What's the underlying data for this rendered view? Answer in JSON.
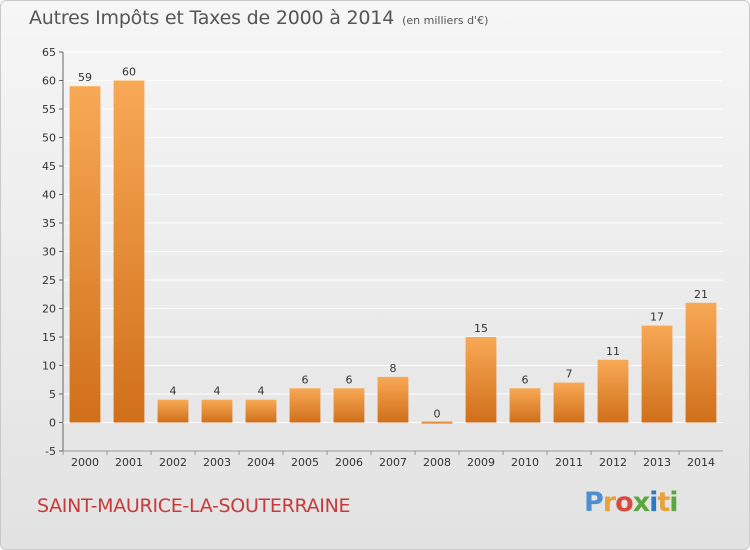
{
  "title": "Autres Impôts et Taxes de 2000 à 2014",
  "unit_note": "(en milliers d'€)",
  "commune": "SAINT-MAURICE-LA-SOUTERRAINE",
  "brand": {
    "letters": [
      "P",
      "r",
      "o",
      "x",
      "i",
      "t",
      "i"
    ],
    "colors": [
      "#4f8fd1",
      "#e8a23a",
      "#d74b3f",
      "#5aa83c",
      "#2f78c4",
      "#e8a23a",
      "#5aa83c"
    ]
  },
  "colors": {
    "bar_light": "#f8a955",
    "bar_dark": "#d06f1a",
    "text": "#555555",
    "commune": "#c83a3a",
    "grid": "#ffffff"
  },
  "chart_data": {
    "type": "bar",
    "title": "Autres Impôts et Taxes de 2000 à 2014",
    "categories": [
      "2000",
      "2001",
      "2002",
      "2003",
      "2004",
      "2005",
      "2006",
      "2007",
      "2008",
      "2009",
      "2010",
      "2011",
      "2012",
      "2013",
      "2014"
    ],
    "values": [
      59,
      60,
      4,
      4,
      4,
      6,
      6,
      8,
      0,
      15,
      6,
      7,
      11,
      17,
      21
    ],
    "ylim": [
      -5,
      65
    ],
    "yticks": [
      -5,
      0,
      5,
      10,
      15,
      20,
      25,
      30,
      35,
      40,
      45,
      50,
      55,
      60,
      65
    ],
    "grid": "horizontal",
    "xlabel": "",
    "ylabel": ""
  }
}
